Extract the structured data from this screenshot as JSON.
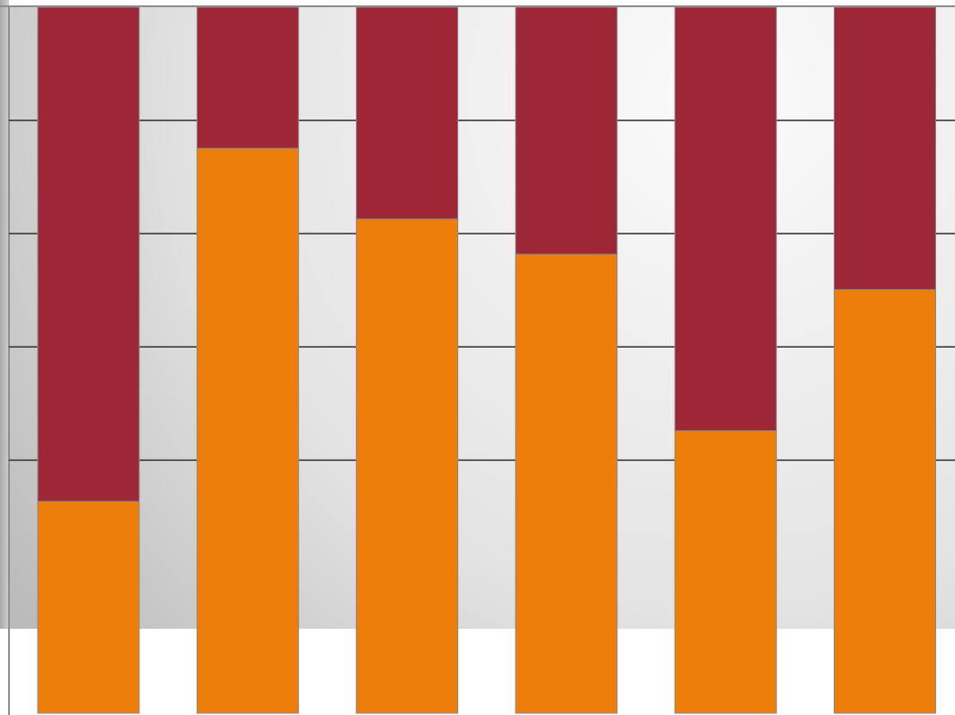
{
  "chart_data": {
    "type": "bar",
    "stacked": true,
    "normalized": true,
    "ylim": [
      0,
      1
    ],
    "grid": true,
    "categories": [
      "",
      "",
      "",
      "",
      "",
      ""
    ],
    "series": [
      {
        "values": [
          0.3,
          0.8,
          0.7,
          0.65,
          0.4,
          0.6
        ]
      },
      {
        "values": [
          0.7,
          0.2,
          0.3,
          0.35,
          0.6,
          0.4
        ]
      }
    ]
  },
  "colors": {
    "series": [
      "#ee7e0a",
      "#9e2737"
    ],
    "bar_outline": "#8a8a8a",
    "gridline": "#3a3a3a",
    "background_light": "#fbfbfb",
    "background_dark": "#b2b2b2",
    "floor": "#ffffff"
  }
}
